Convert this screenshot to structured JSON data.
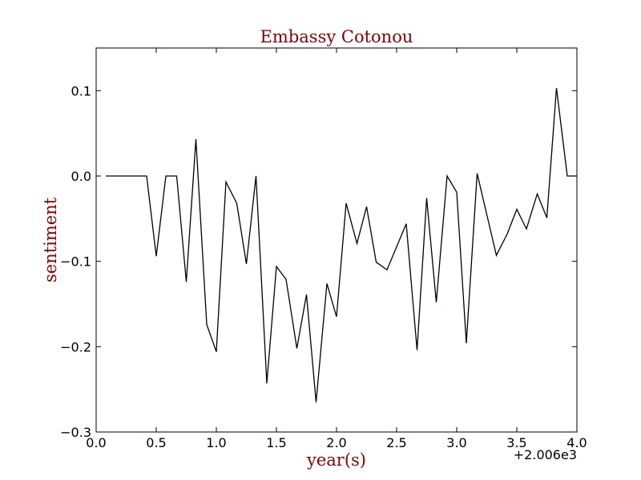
{
  "chart_data": {
    "type": "line",
    "title": "Embassy Cotonou",
    "xlabel": "year(s)",
    "ylabel": "sentiment",
    "x_offset_label": "+2.006e3",
    "xlim": [
      0.0,
      4.0
    ],
    "ylim": [
      -0.3,
      0.15
    ],
    "xticks": [
      0.0,
      0.5,
      1.0,
      1.5,
      2.0,
      2.5,
      3.0,
      3.5,
      4.0
    ],
    "xtick_labels": [
      "0.0",
      "0.5",
      "1.0",
      "1.5",
      "2.0",
      "2.5",
      "3.0",
      "3.5",
      "4.0"
    ],
    "yticks": [
      -0.3,
      -0.2,
      -0.1,
      0.0,
      0.1
    ],
    "ytick_labels": [
      "−0.3",
      "−0.2",
      "−0.1",
      "0.0",
      "0.1"
    ],
    "grid": false,
    "line_color": "#000000",
    "series": [
      {
        "x": [
          0.08,
          0.17,
          0.25,
          0.33,
          0.42,
          0.5,
          0.58,
          0.67,
          0.75,
          0.83,
          0.92,
          1.0,
          1.08,
          1.17,
          1.25,
          1.33,
          1.42,
          1.5,
          1.58,
          1.67,
          1.75,
          1.83,
          1.92,
          2.0,
          2.08,
          2.17,
          2.25,
          2.33,
          2.42,
          2.5,
          2.58,
          2.67,
          2.75,
          2.83,
          2.92,
          3.0,
          3.08,
          3.17,
          3.25,
          3.33,
          3.42,
          3.5,
          3.58,
          3.67,
          3.75,
          3.83,
          3.92,
          4.0
        ],
        "y": [
          0.0,
          0.0,
          0.0,
          0.0,
          0.0,
          -0.094,
          0.0,
          0.0,
          -0.124,
          0.043,
          -0.174,
          -0.206,
          -0.007,
          -0.032,
          -0.103,
          0.0,
          -0.243,
          -0.106,
          -0.121,
          -0.202,
          -0.139,
          -0.265,
          -0.126,
          -0.165,
          -0.032,
          -0.079,
          -0.036,
          -0.101,
          -0.11,
          -0.083,
          -0.056,
          -0.204,
          -0.026,
          -0.148,
          0.0,
          -0.019,
          -0.196,
          0.003,
          -0.045,
          -0.093,
          -0.068,
          -0.039,
          -0.062,
          -0.021,
          -0.049,
          0.103,
          0.0,
          0.0
        ]
      }
    ]
  }
}
